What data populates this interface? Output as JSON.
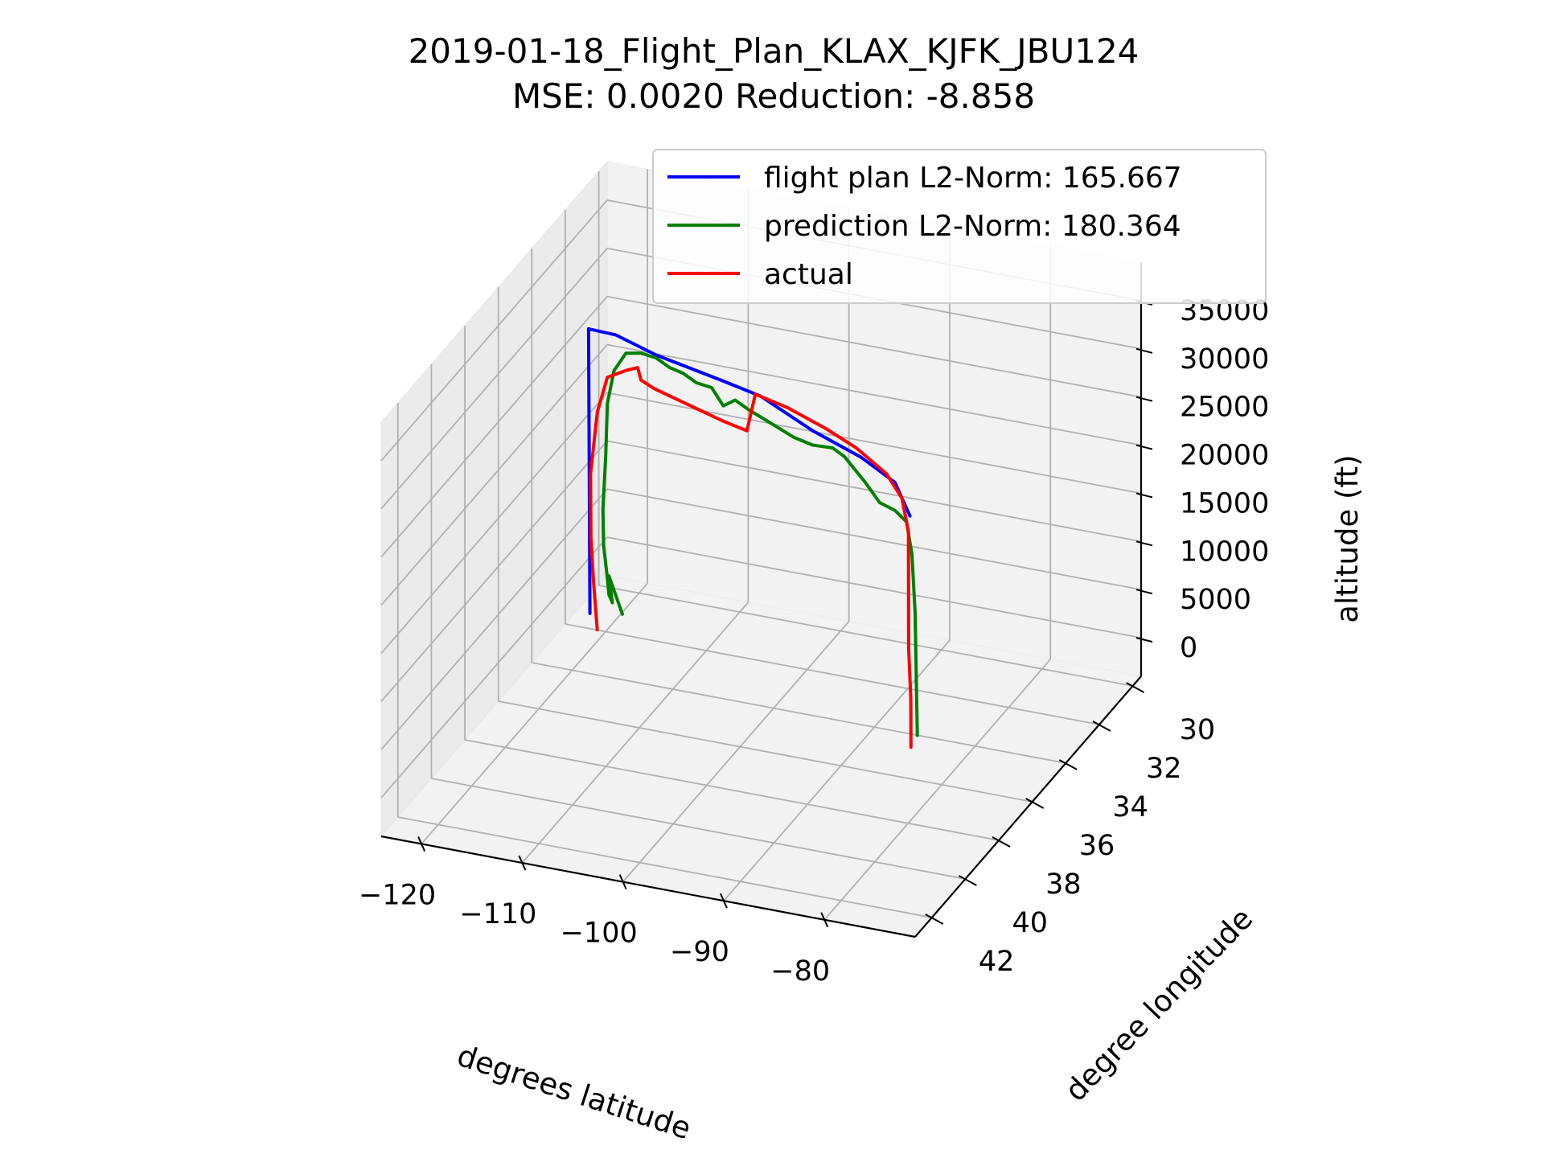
{
  "title": "2019-01-18_Flight_Plan_KLAX_KJFK_JBU124",
  "subtitle": "MSE: 0.0020   Reduction: -8.858",
  "colors": {
    "flight_plan": "#0000ff",
    "prediction": "#008000",
    "actual": "#ff0000",
    "pane": "#f2f2f2",
    "grid": "#b0b0b0"
  },
  "chart_data": {
    "type": "line3d",
    "title": "2019-01-18_Flight_Plan_KLAX_KJFK_JBU124",
    "subtitle": "MSE: 0.0020   Reduction: -8.858",
    "xlabel": "degrees latitude",
    "ylabel": "degree longitude",
    "zlabel": "altitude (ft)",
    "xlim": [
      -124,
      -71
    ],
    "ylim": [
      29.5,
      43
    ],
    "zlim": [
      -4000,
      39000
    ],
    "xticks": [
      "−120",
      "−110",
      "−100",
      "−90",
      "−80"
    ],
    "yticks": [
      "30",
      "32",
      "34",
      "36",
      "38",
      "40",
      "42"
    ],
    "zticks": [
      "0",
      "5000",
      "10000",
      "15000",
      "20000",
      "25000",
      "30000",
      "35000"
    ],
    "grid": true,
    "legend": "top-right",
    "legend_entries": [
      {
        "label": "flight plan L2-Norm: 165.667",
        "color": "#0000ff"
      },
      {
        "label": "prediction L2-Norm: 180.364",
        "color": "#008000"
      },
      {
        "label": "actual",
        "color": "#ff0000"
      }
    ],
    "series": [
      {
        "name": "flight plan L2-Norm: 165.667",
        "color": "#0000ff",
        "points": [
          [
            -118.4,
            33.9,
            2000
          ],
          [
            -118.2,
            34.1,
            32000
          ],
          [
            -114.0,
            35.0,
            34000
          ],
          [
            -108.0,
            36.2,
            35500
          ],
          [
            -100.0,
            37.2,
            36500
          ],
          [
            -95.0,
            37.8,
            37000
          ],
          [
            -88.0,
            38.9,
            37000
          ],
          [
            -82.0,
            39.6,
            36800
          ],
          [
            -77.5,
            40.3,
            36500
          ],
          [
            -75.5,
            40.6,
            34000
          ]
        ]
      },
      {
        "name": "prediction L2-Norm: 180.364",
        "color": "#008000",
        "points": [
          [
            -117.0,
            32.8,
            0
          ],
          [
            -121.0,
            31.2,
            0
          ],
          [
            -118.5,
            32.5,
            300
          ],
          [
            -118.5,
            32.7,
            1500
          ],
          [
            -118.5,
            32.8,
            3500
          ],
          [
            -118.7,
            32.9,
            7000
          ],
          [
            -118.6,
            33.0,
            11000
          ],
          [
            -118.0,
            33.2,
            17000
          ],
          [
            -117.5,
            33.4,
            23000
          ],
          [
            -116.5,
            33.6,
            27000
          ],
          [
            -115.0,
            33.8,
            29500
          ],
          [
            -113.0,
            34.1,
            30500
          ],
          [
            -111.0,
            34.4,
            31000
          ],
          [
            -109.0,
            34.8,
            31200
          ],
          [
            -107.0,
            35.2,
            31800
          ],
          [
            -105.0,
            35.6,
            32000
          ],
          [
            -103.0,
            35.9,
            32500
          ],
          [
            -101.5,
            36.1,
            31300
          ],
          [
            -100.0,
            36.3,
            32600
          ],
          [
            -98.0,
            36.7,
            32800
          ],
          [
            -95.0,
            37.1,
            32700
          ],
          [
            -92.0,
            37.6,
            32900
          ],
          [
            -89.5,
            38.0,
            33400
          ],
          [
            -87.0,
            38.3,
            34200
          ],
          [
            -85.5,
            38.5,
            34000
          ],
          [
            -83.0,
            38.8,
            32500
          ],
          [
            -81.0,
            39.1,
            31300
          ],
          [
            -79.0,
            39.4,
            31500
          ],
          [
            -77.5,
            39.6,
            31000
          ],
          [
            -76.8,
            39.7,
            28000
          ],
          [
            -76.4,
            39.75,
            22000
          ],
          [
            -76.2,
            39.8,
            15000
          ],
          [
            -76.1,
            39.8,
            9500
          ]
        ]
      },
      {
        "name": "actual",
        "color": "#ff0000",
        "points": [
          [
            -118.0,
            33.7,
            0
          ],
          [
            -118.2,
            33.8,
            5000
          ],
          [
            -118.3,
            33.9,
            10000
          ],
          [
            -118.0,
            34.1,
            17000
          ],
          [
            -117.0,
            34.3,
            24000
          ],
          [
            -115.5,
            34.6,
            28500
          ],
          [
            -113.0,
            35.0,
            30500
          ],
          [
            -111.5,
            35.2,
            31500
          ],
          [
            -111.0,
            35.3,
            30500
          ],
          [
            -109.0,
            35.7,
            30800
          ],
          [
            -105.0,
            36.3,
            31300
          ],
          [
            -100.0,
            37.0,
            31800
          ],
          [
            -97.0,
            37.4,
            32200
          ],
          [
            -96.0,
            37.5,
            36400
          ],
          [
            -92.0,
            38.0,
            36800
          ],
          [
            -87.0,
            38.7,
            37000
          ],
          [
            -83.0,
            39.3,
            37000
          ],
          [
            -79.0,
            39.9,
            36300
          ],
          [
            -76.8,
            40.3,
            35000
          ],
          [
            -75.9,
            40.45,
            32000
          ],
          [
            -75.8,
            40.5,
            20000
          ],
          [
            -75.5,
            40.55,
            15000
          ],
          [
            -75.4,
            40.6,
            10000
          ]
        ]
      }
    ]
  }
}
